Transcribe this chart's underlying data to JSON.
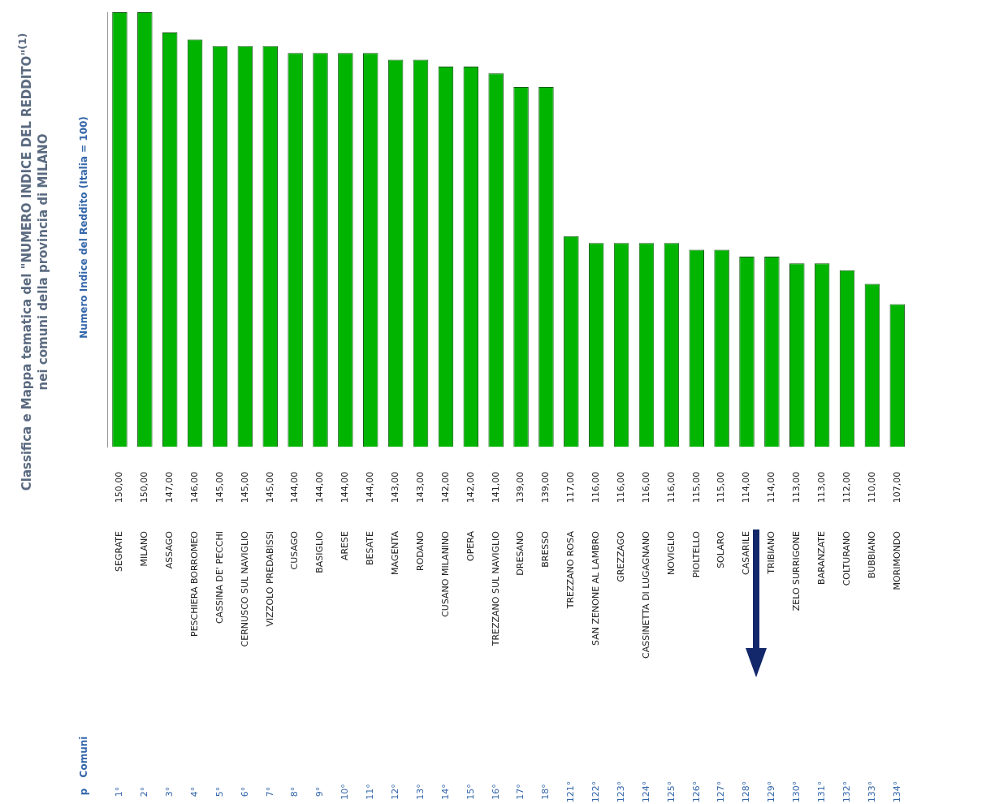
{
  "chart_data": {
    "type": "bar",
    "title": "Classifica e Mappa tematica del \"NUMERO INDICE DEL REDDITO\"$^{(1)}$ nei comuni della provincia di MILANO",
    "ylabel": "Numero Indice del Reddito (Italia = 100)",
    "categories": [
      "SEGRATE",
      "MILANO",
      "ASSAGO",
      "PESCHIERA BORROMEO",
      "CASSINA DE' PECCHI",
      "CERNUSCO SUL NAVIGLIO",
      "VIZZOLO PREDABISSI",
      "CUSAGO",
      "BASIGLIO",
      "ARESE",
      "BESATE",
      "MAGENTA",
      "RODANO",
      "CUSANO MILANINO",
      "OPERA",
      "TREZZANO SUL NAVIGLIO",
      "DRESANO",
      "BRESSO",
      "TREZZANO ROSA",
      "SAN ZENONE AL LAMBRO",
      "GREZZAGO",
      "CASSINETTA DI LUGAGNANO",
      "NOVIGLIO",
      "PIOLTELLO",
      "SOLARO",
      "CASARILE",
      "TRIBIANO",
      "ZELO SURRIGONE",
      "BARANZATE",
      "COLTURANO",
      "BUBBIANO",
      "MORIMONDO"
    ],
    "values": [
      150,
      150,
      147,
      146,
      145,
      145,
      145,
      144,
      144,
      144,
      144,
      143,
      143,
      142,
      142,
      141,
      139,
      139,
      117,
      116,
      116,
      116,
      116,
      115,
      115,
      114,
      114,
      113,
      113,
      112,
      110,
      107
    ],
    "value_labels": [
      "150,00",
      "150,00",
      "147,00",
      "146,00",
      "145,00",
      "145,00",
      "145,00",
      "144,00",
      "144,00",
      "144,00",
      "144,00",
      "143,00",
      "143,00",
      "142,00",
      "142,00",
      "141,00",
      "139,00",
      "139,00",
      "117,00",
      "116,00",
      "116,00",
      "116,00",
      "116,00",
      "115,00",
      "115,00",
      "114,00",
      "114,00",
      "113,00",
      "113,00",
      "112,00",
      "110,00",
      "107,00"
    ],
    "color": "#00b400",
    "ylim": [
      86,
      150
    ],
    "grid": false,
    "legend": false,
    "tick_labels": "x",
    "annotations": [
      "p",
      "Comuni",
      "1°",
      "2°",
      "3°",
      "4°",
      "5°",
      "6°",
      "7°",
      "8°",
      "9°",
      "10°",
      "11°",
      "12°",
      "13°",
      "14°",
      "15°",
      "16°",
      "17°",
      "18°",
      "121°",
      "122°",
      "123°",
      "124°",
      "125°",
      "126°",
      "127°",
      "128°",
      "129°",
      "130°",
      "131°",
      "132°",
      "133°",
      "134°"
    ]
  }
}
